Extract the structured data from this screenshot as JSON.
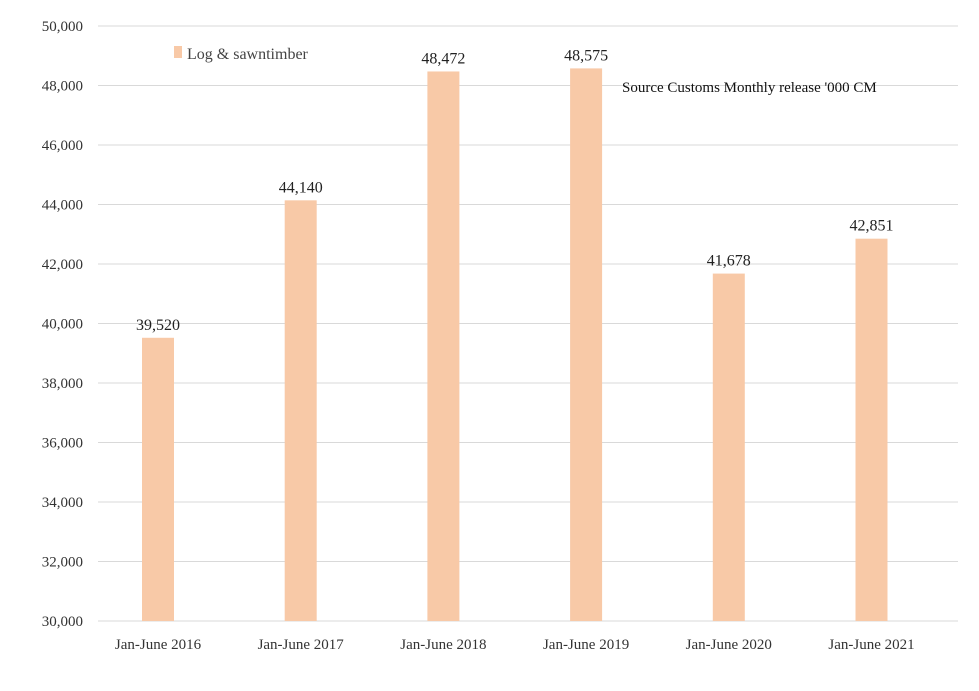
{
  "chart_data": {
    "type": "bar",
    "categories": [
      "Jan-June 2016",
      "Jan-June 2017",
      "Jan-June 2018",
      "Jan-June 2019",
      "Jan-June 2020",
      "Jan-June 2021"
    ],
    "series": [
      {
        "name": "Log & sawntimber",
        "values": [
          39520,
          44140,
          48472,
          48575,
          41678,
          42851
        ]
      }
    ],
    "data_labels": [
      "39,520",
      "44,140",
      "48,472",
      "48,575",
      "41,678",
      "42,851"
    ],
    "y_tick_labels": [
      "30,000",
      "32,000",
      "34,000",
      "36,000",
      "38,000",
      "40,000",
      "42,000",
      "44,000",
      "46,000",
      "48,000",
      "50,000"
    ],
    "ylim": [
      30000,
      50000
    ],
    "title": "",
    "xlabel": "",
    "ylabel": "",
    "annotation": "Source Customs Monthly release '000 CM",
    "grid": true,
    "legend_position": "top-left",
    "colors": {
      "bar": "#f8c9a7",
      "grid": "#d9d9d9"
    }
  }
}
